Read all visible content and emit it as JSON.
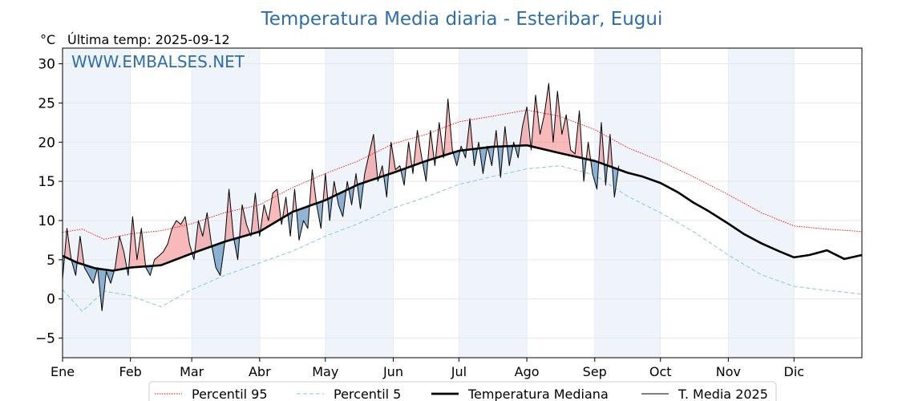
{
  "chart_data": {
    "type": "line",
    "title": "Temperatura Media diaria - Esteribar, Eugui",
    "unit_label": "°C",
    "last_update": "Última temp: 2025-09-12",
    "watermark": "WWW.EMBALSES.NET",
    "x_tick_labels": [
      "Ene",
      "Feb",
      "Mar",
      "Abr",
      "May",
      "Jun",
      "Jul",
      "Ago",
      "Sep",
      "Oct",
      "Nov",
      "Dic"
    ],
    "x_tick_days": [
      1,
      32,
      60,
      91,
      121,
      152,
      182,
      213,
      244,
      274,
      305,
      335
    ],
    "xlim": [
      1,
      366
    ],
    "ylim": [
      -7.5,
      32
    ],
    "y_ticks": [
      -5,
      0,
      5,
      10,
      15,
      20,
      25,
      30
    ],
    "grid": true,
    "legend_position": "bottom-center",
    "colors": {
      "p95": "#ff0000",
      "p5": "#87c7dc",
      "median": "#000000",
      "current": "#000000",
      "above_fill": "#f08080",
      "below_fill": "#4682b4",
      "title": "#2f6ea6",
      "band": "#eef4fa"
    },
    "series": [
      {
        "name": "Percentil 95",
        "style": "dotted",
        "x": [
          1,
          10,
          20,
          32,
          46,
          60,
          75,
          91,
          106,
          121,
          136,
          152,
          167,
          182,
          197,
          213,
          228,
          244,
          259,
          274,
          289,
          305,
          320,
          335,
          350,
          366
        ],
        "values": [
          8.5,
          8.9,
          7.6,
          8.3,
          8.7,
          9.6,
          11.0,
          12.0,
          14.2,
          16.0,
          17.6,
          19.8,
          21.0,
          22.6,
          23.3,
          24.1,
          23.3,
          21.6,
          19.3,
          17.6,
          15.6,
          13.3,
          11.0,
          9.3,
          8.9,
          8.6
        ]
      },
      {
        "name": "Percentil 5",
        "style": "dashed",
        "x": [
          1,
          10,
          20,
          32,
          46,
          60,
          75,
          91,
          106,
          121,
          136,
          152,
          167,
          182,
          197,
          213,
          228,
          244,
          259,
          274,
          289,
          305,
          320,
          335,
          350,
          366
        ],
        "values": [
          1.2,
          -1.6,
          1.0,
          0.4,
          -1.0,
          1.2,
          3.0,
          4.6,
          6.1,
          8.0,
          9.6,
          11.6,
          13.0,
          14.6,
          15.6,
          16.6,
          17.0,
          15.8,
          13.1,
          11.0,
          8.6,
          5.6,
          3.1,
          1.6,
          1.1,
          0.6
        ]
      },
      {
        "name": "Temperatura Mediana",
        "style": "solid-thick",
        "x": [
          1,
          8,
          16,
          24,
          32,
          46,
          60,
          75,
          91,
          106,
          121,
          136,
          152,
          167,
          182,
          197,
          213,
          228,
          244,
          252,
          259,
          266,
          274,
          282,
          289,
          296,
          305,
          312,
          320,
          328,
          335,
          342,
          350,
          358,
          366
        ],
        "values": [
          5.5,
          4.6,
          3.9,
          3.6,
          4.0,
          4.3,
          5.8,
          7.3,
          8.6,
          11.1,
          12.6,
          14.6,
          16.1,
          17.6,
          18.9,
          19.4,
          19.6,
          18.6,
          17.6,
          16.8,
          16.1,
          15.6,
          14.8,
          13.6,
          12.3,
          11.2,
          9.6,
          8.3,
          7.1,
          6.1,
          5.3,
          5.6,
          6.2,
          5.1,
          5.6
        ]
      },
      {
        "name": "T. Media 2025",
        "style": "solid-thin",
        "x": [
          1,
          3,
          5,
          7,
          9,
          11,
          13,
          15,
          17,
          19,
          21,
          23,
          25,
          27,
          29,
          31,
          33,
          35,
          37,
          39,
          41,
          43,
          45,
          47,
          49,
          51,
          53,
          55,
          57,
          59,
          61,
          63,
          65,
          67,
          69,
          71,
          73,
          75,
          77,
          79,
          81,
          83,
          85,
          87,
          89,
          91,
          93,
          95,
          97,
          99,
          101,
          103,
          105,
          107,
          109,
          111,
          113,
          115,
          117,
          119,
          121,
          123,
          125,
          127,
          129,
          131,
          133,
          135,
          137,
          139,
          141,
          143,
          145,
          147,
          149,
          151,
          153,
          155,
          157,
          159,
          161,
          163,
          165,
          167,
          169,
          171,
          173,
          175,
          177,
          179,
          181,
          183,
          185,
          187,
          189,
          191,
          193,
          195,
          197,
          199,
          201,
          203,
          205,
          207,
          209,
          211,
          213,
          215,
          217,
          219,
          221,
          223,
          225,
          227,
          229,
          231,
          233,
          235,
          237,
          239,
          241,
          243,
          245,
          247,
          249,
          251,
          253,
          255
        ],
        "values": [
          2.5,
          9.0,
          5.0,
          3.0,
          8.0,
          4.0,
          3.0,
          2.0,
          4.0,
          -1.5,
          3.5,
          2.0,
          4.0,
          8.0,
          6.0,
          3.0,
          10.5,
          5.0,
          9.0,
          4.0,
          3.0,
          5.0,
          5.5,
          6.0,
          7.0,
          9.0,
          10.0,
          9.5,
          10.5,
          7.0,
          5.0,
          10.0,
          8.0,
          11.0,
          7.0,
          4.0,
          3.0,
          7.0,
          14.0,
          8.0,
          5.0,
          12.0,
          9.5,
          8.0,
          13.5,
          8.0,
          12.0,
          10.0,
          13.5,
          14.0,
          9.5,
          13.0,
          8.0,
          14.0,
          7.5,
          10.0,
          9.0,
          16.5,
          12.0,
          9.0,
          16.0,
          10.0,
          15.0,
          12.0,
          10.5,
          15.0,
          12.0,
          16.0,
          11.5,
          16.0,
          18.5,
          21.0,
          15.0,
          17.0,
          13.0,
          20.0,
          16.5,
          17.0,
          14.5,
          20.0,
          16.0,
          21.5,
          18.0,
          15.0,
          21.5,
          17.0,
          22.5,
          18.0,
          25.5,
          19.0,
          17.0,
          19.5,
          18.0,
          23.0,
          17.0,
          20.0,
          16.0,
          19.5,
          17.0,
          21.5,
          15.5,
          22.0,
          17.0,
          20.0,
          18.0,
          22.0,
          24.5,
          19.0,
          26.0,
          21.0,
          23.5,
          27.5,
          20.0,
          26.5,
          21.0,
          23.5,
          19.0,
          18.5,
          24.0,
          15.0,
          20.0,
          16.0,
          14.0,
          22.5,
          14.5,
          21.0,
          13.0,
          17.0
        ]
      }
    ]
  }
}
